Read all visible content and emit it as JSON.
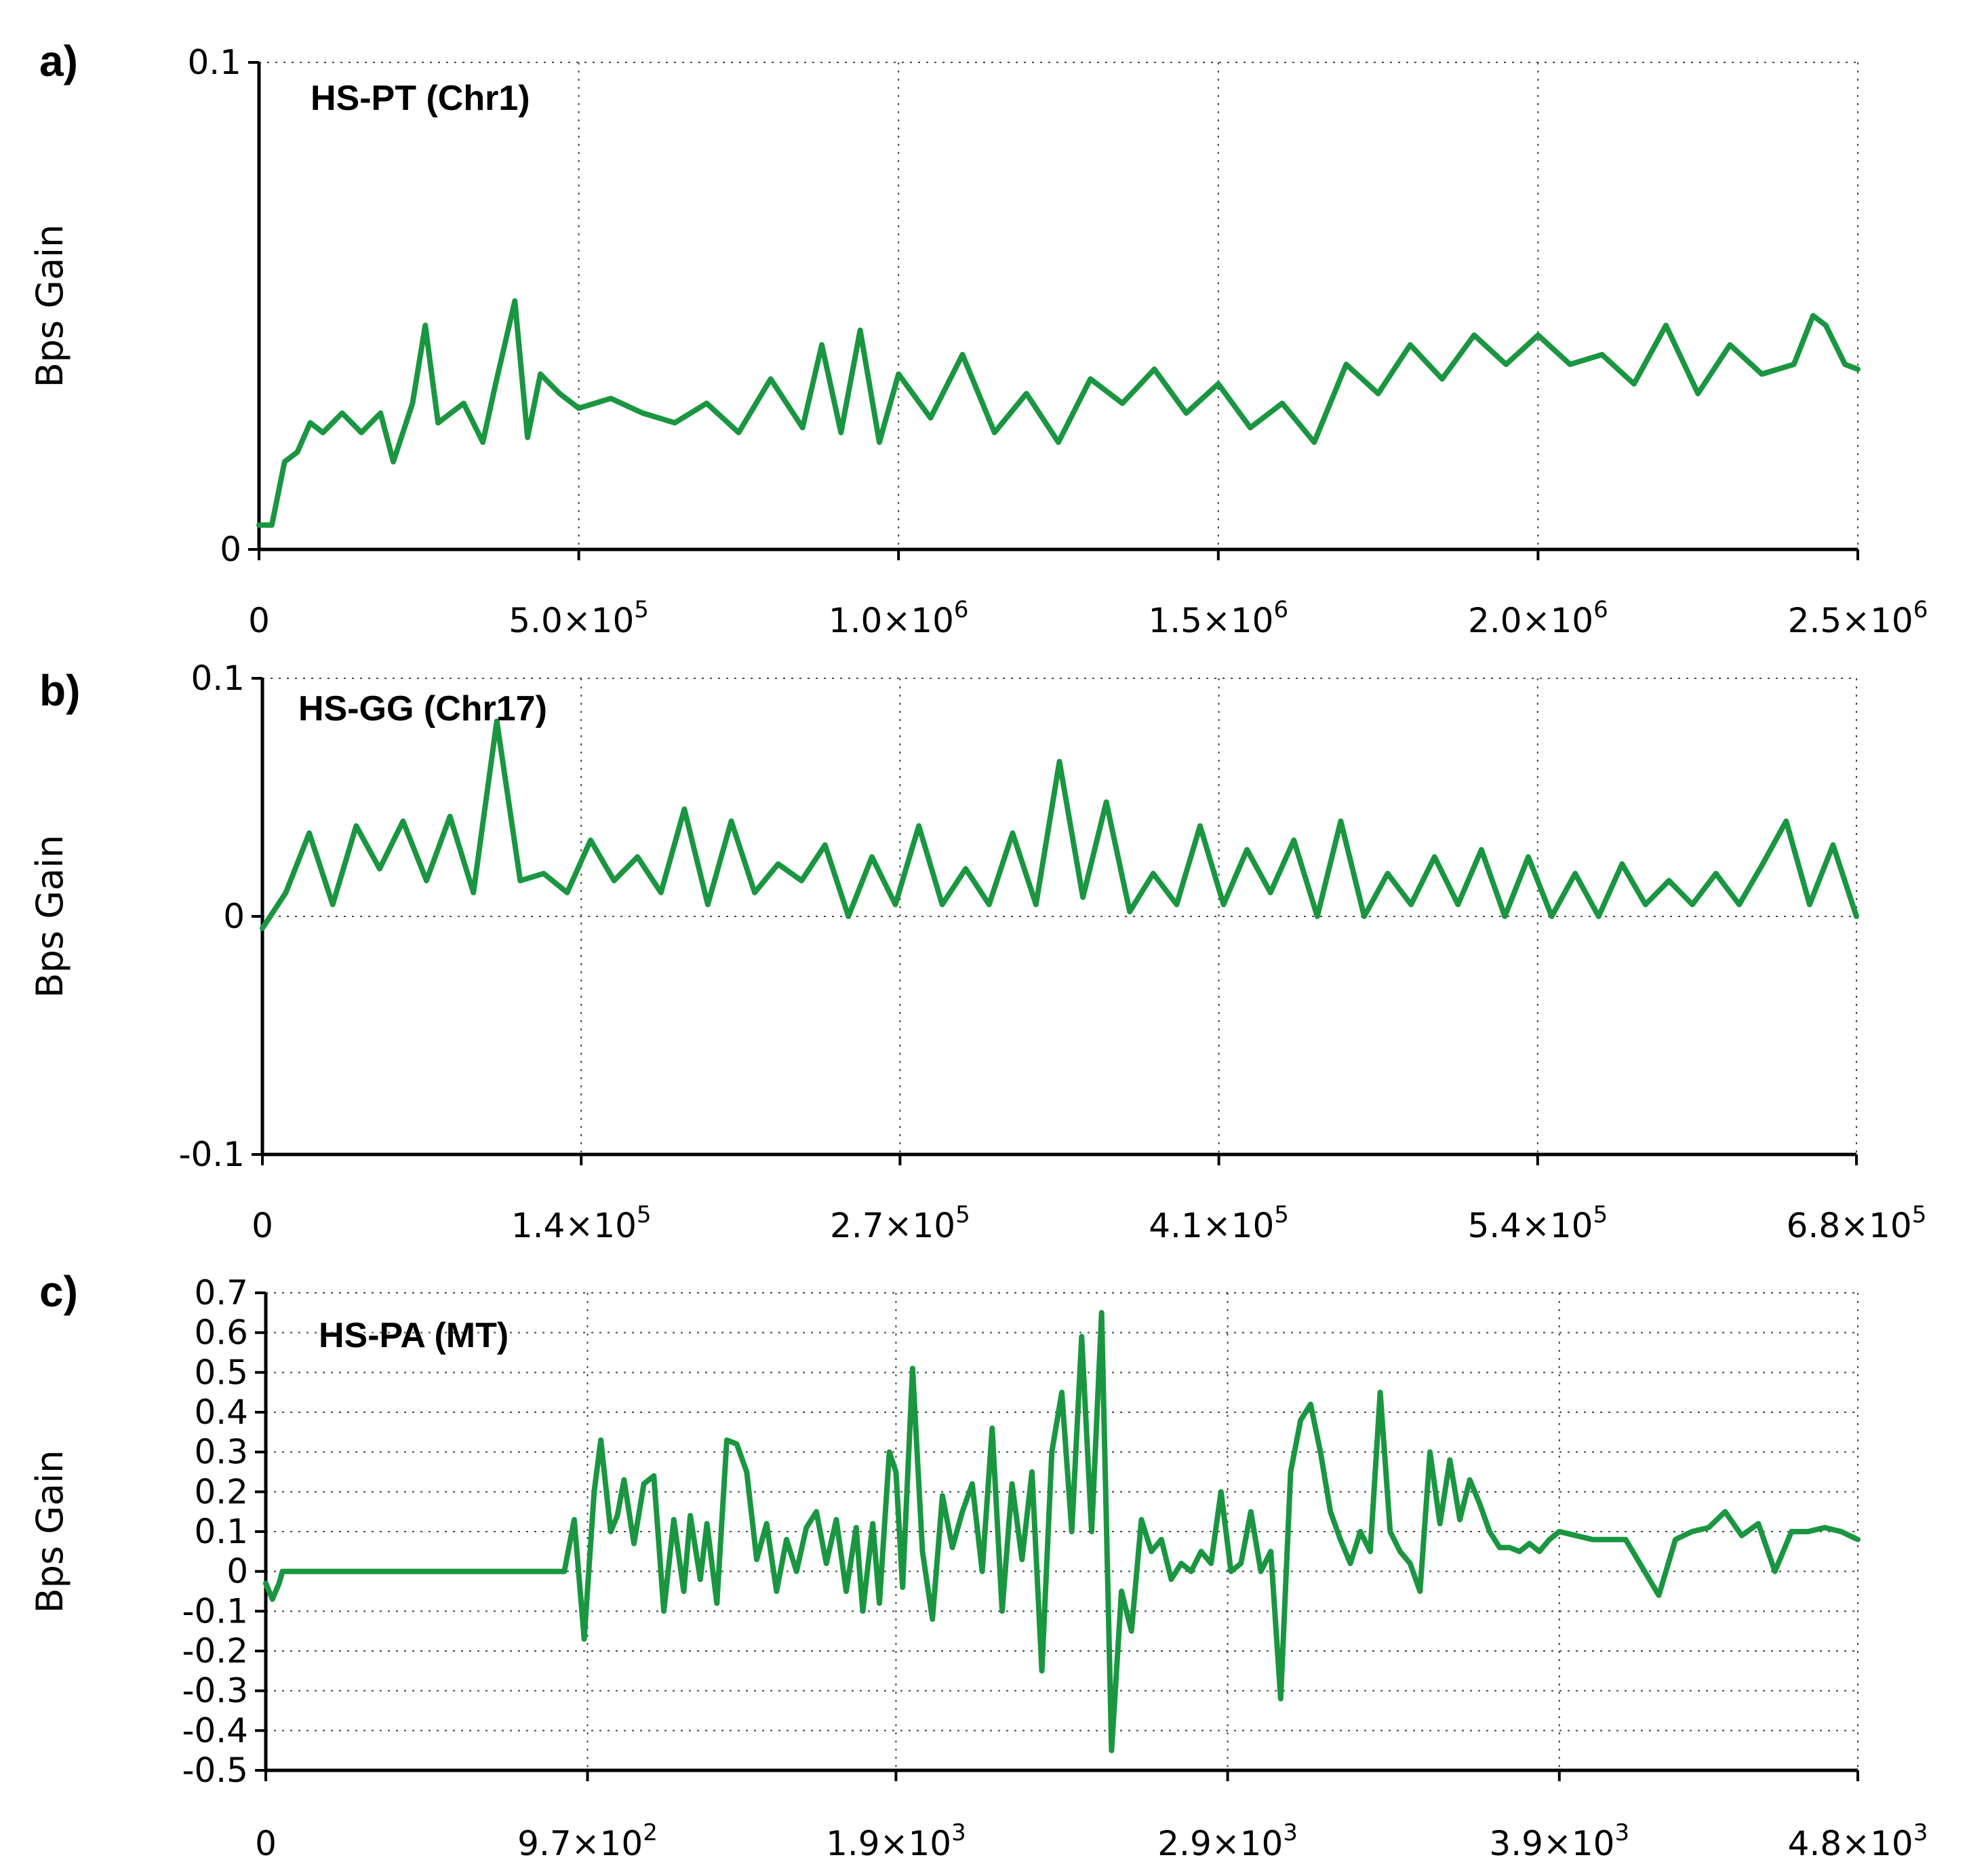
{
  "chart_data": [
    {
      "type": "line",
      "panel": "a)",
      "title": "HS-PT (Chr1)",
      "xlabel": "",
      "ylabel": "Bps Gain",
      "xlim": [
        0,
        2500000
      ],
      "ylim": [
        0,
        0.1
      ],
      "x_ticks": [
        {
          "value": 0,
          "label": "0"
        },
        {
          "value": 500000,
          "mant": "5.0×10",
          "exp": "5"
        },
        {
          "value": 1000000,
          "mant": "1.0×10",
          "exp": "6"
        },
        {
          "value": 1500000,
          "mant": "1.5×10",
          "exp": "6"
        },
        {
          "value": 2000000,
          "mant": "2.0×10",
          "exp": "6"
        },
        {
          "value": 2500000,
          "mant": "2.5×10",
          "exp": "6"
        }
      ],
      "y_ticks": [
        {
          "value": 0,
          "label": "0"
        },
        {
          "value": 0.1,
          "label": "0.1"
        }
      ],
      "grid": true,
      "series": [
        {
          "name": "HS-PT (Chr1)",
          "color": "#1a9641",
          "x": [
            0,
            20000,
            40000,
            60000,
            80000,
            100000,
            130000,
            160000,
            190000,
            210000,
            240000,
            260000,
            280000,
            320000,
            350000,
            370000,
            400000,
            420000,
            440000,
            470000,
            500000,
            550000,
            600000,
            650000,
            700000,
            750000,
            800000,
            850000,
            880000,
            910000,
            940000,
            970000,
            1000000,
            1050000,
            1100000,
            1150000,
            1200000,
            1250000,
            1300000,
            1350000,
            1400000,
            1450000,
            1500000,
            1550000,
            1600000,
            1650000,
            1700000,
            1750000,
            1800000,
            1850000,
            1900000,
            1950000,
            2000000,
            2050000,
            2100000,
            2150000,
            2200000,
            2250000,
            2300000,
            2350000,
            2400000,
            2430000,
            2450000,
            2480000,
            2500000
          ],
          "y": [
            0.005,
            0.005,
            0.018,
            0.02,
            0.026,
            0.024,
            0.028,
            0.024,
            0.028,
            0.018,
            0.03,
            0.046,
            0.026,
            0.03,
            0.022,
            0.034,
            0.051,
            0.023,
            0.036,
            0.032,
            0.029,
            0.031,
            0.028,
            0.026,
            0.03,
            0.024,
            0.035,
            0.025,
            0.042,
            0.024,
            0.045,
            0.022,
            0.036,
            0.027,
            0.04,
            0.024,
            0.032,
            0.022,
            0.035,
            0.03,
            0.037,
            0.028,
            0.034,
            0.025,
            0.03,
            0.022,
            0.038,
            0.032,
            0.042,
            0.035,
            0.044,
            0.038,
            0.044,
            0.038,
            0.04,
            0.034,
            0.046,
            0.032,
            0.042,
            0.036,
            0.038,
            0.048,
            0.046,
            0.038,
            0.037
          ]
        }
      ]
    },
    {
      "type": "line",
      "panel": "b)",
      "title": "HS-GG (Chr17)",
      "xlabel": "",
      "ylabel": "Bps Gain",
      "xlim": [
        0,
        680000
      ],
      "ylim": [
        -0.1,
        0.1
      ],
      "x_ticks": [
        {
          "value": 0,
          "label": "0"
        },
        {
          "value": 136000,
          "mant": "1.4×10",
          "exp": "5"
        },
        {
          "value": 272000,
          "mant": "2.7×10",
          "exp": "5"
        },
        {
          "value": 408000,
          "mant": "4.1×10",
          "exp": "5"
        },
        {
          "value": 544000,
          "mant": "5.4×10",
          "exp": "5"
        },
        {
          "value": 680000,
          "mant": "6.8×10",
          "exp": "5"
        }
      ],
      "y_ticks": [
        {
          "value": -0.1,
          "label": "-0.1"
        },
        {
          "value": 0,
          "label": "0"
        },
        {
          "value": 0.1,
          "label": "0.1"
        }
      ],
      "grid": true,
      "series": [
        {
          "name": "HS-GG (Chr17)",
          "color": "#1a9641",
          "x": [
            0,
            10000,
            20000,
            30000,
            40000,
            50000,
            60000,
            70000,
            80000,
            90000,
            100000,
            110000,
            120000,
            130000,
            140000,
            150000,
            160000,
            170000,
            180000,
            190000,
            200000,
            210000,
            220000,
            230000,
            240000,
            250000,
            260000,
            270000,
            280000,
            290000,
            300000,
            310000,
            320000,
            330000,
            340000,
            350000,
            360000,
            370000,
            380000,
            390000,
            400000,
            410000,
            420000,
            430000,
            440000,
            450000,
            460000,
            470000,
            480000,
            490000,
            500000,
            510000,
            520000,
            530000,
            540000,
            550000,
            560000,
            570000,
            580000,
            590000,
            600000,
            610000,
            620000,
            630000,
            640000,
            650000,
            660000,
            670000,
            680000
          ],
          "y": [
            -0.005,
            0.01,
            0.035,
            0.005,
            0.038,
            0.02,
            0.04,
            0.015,
            0.042,
            0.01,
            0.082,
            0.015,
            0.018,
            0.01,
            0.032,
            0.015,
            0.025,
            0.01,
            0.045,
            0.005,
            0.04,
            0.01,
            0.022,
            0.015,
            0.03,
            0.0,
            0.025,
            0.005,
            0.038,
            0.005,
            0.02,
            0.005,
            0.035,
            0.005,
            0.065,
            0.008,
            0.048,
            0.002,
            0.018,
            0.005,
            0.038,
            0.005,
            0.028,
            0.01,
            0.032,
            0.0,
            0.04,
            0.0,
            0.018,
            0.005,
            0.025,
            0.005,
            0.028,
            0.0,
            0.025,
            0.0,
            0.018,
            0.0,
            0.022,
            0.005,
            0.015,
            0.005,
            0.018,
            0.005,
            0.022,
            0.04,
            0.005,
            0.03,
            0.0
          ]
        }
      ]
    },
    {
      "type": "line",
      "panel": "c)",
      "title": "HS-PA (MT)",
      "xlabel": "",
      "ylabel": "Bps Gain",
      "xlim": [
        0,
        4800
      ],
      "ylim": [
        -0.5,
        0.7
      ],
      "x_ticks": [
        {
          "value": 0,
          "label": "0"
        },
        {
          "value": 970,
          "mant": "9.7×10",
          "exp": "2"
        },
        {
          "value": 1900,
          "mant": "1.9×10",
          "exp": "3"
        },
        {
          "value": 2900,
          "mant": "2.9×10",
          "exp": "3"
        },
        {
          "value": 3900,
          "mant": "3.9×10",
          "exp": "3"
        },
        {
          "value": 4800,
          "mant": "4.8×10",
          "exp": "3"
        }
      ],
      "y_ticks": [
        {
          "value": -0.5,
          "label": "-0.5"
        },
        {
          "value": -0.4,
          "label": "-0.4"
        },
        {
          "value": -0.3,
          "label": "-0.3"
        },
        {
          "value": -0.2,
          "label": "-0.2"
        },
        {
          "value": -0.1,
          "label": "-0.1"
        },
        {
          "value": 0,
          "label": "0"
        },
        {
          "value": 0.1,
          "label": "0.1"
        },
        {
          "value": 0.2,
          "label": "0.2"
        },
        {
          "value": 0.3,
          "label": "0.3"
        },
        {
          "value": 0.4,
          "label": "0.4"
        },
        {
          "value": 0.5,
          "label": "0.5"
        },
        {
          "value": 0.6,
          "label": "0.6"
        },
        {
          "value": 0.7,
          "label": "0.7"
        }
      ],
      "grid": true,
      "series": [
        {
          "name": "HS-PA (MT)",
          "color": "#1a9641",
          "x": [
            0,
            20,
            40,
            50,
            870,
            880,
            900,
            930,
            960,
            990,
            1010,
            1040,
            1060,
            1080,
            1110,
            1140,
            1170,
            1200,
            1230,
            1260,
            1280,
            1310,
            1330,
            1360,
            1390,
            1420,
            1450,
            1480,
            1510,
            1540,
            1570,
            1600,
            1630,
            1660,
            1690,
            1720,
            1750,
            1780,
            1800,
            1830,
            1850,
            1880,
            1900,
            1920,
            1950,
            1980,
            2010,
            2040,
            2070,
            2100,
            2130,
            2160,
            2190,
            2220,
            2250,
            2280,
            2310,
            2340,
            2370,
            2400,
            2430,
            2460,
            2490,
            2520,
            2550,
            2580,
            2610,
            2640,
            2670,
            2700,
            2730,
            2760,
            2790,
            2820,
            2850,
            2880,
            2910,
            2940,
            2970,
            3000,
            3030,
            3060,
            3090,
            3120,
            3150,
            3180,
            3210,
            3240,
            3270,
            3300,
            3330,
            3360,
            3390,
            3420,
            3450,
            3480,
            3510,
            3540,
            3570,
            3600,
            3630,
            3660,
            3690,
            3720,
            3750,
            3780,
            3810,
            3840,
            3870,
            3900,
            4000,
            4100,
            4200,
            4250,
            4300,
            4350,
            4400,
            4450,
            4500,
            4550,
            4600,
            4650,
            4700,
            4750,
            4800
          ],
          "y": [
            -0.03,
            -0.07,
            -0.03,
            0.0,
            0.0,
            0.0,
            0.0,
            0.13,
            -0.17,
            0.2,
            0.33,
            0.1,
            0.14,
            0.23,
            0.07,
            0.22,
            0.24,
            -0.1,
            0.13,
            -0.05,
            0.14,
            -0.02,
            0.12,
            -0.08,
            0.33,
            0.32,
            0.25,
            0.03,
            0.12,
            -0.05,
            0.08,
            0.0,
            0.11,
            0.15,
            0.02,
            0.13,
            -0.05,
            0.11,
            -0.1,
            0.12,
            -0.08,
            0.3,
            0.25,
            -0.04,
            0.51,
            0.05,
            -0.12,
            0.19,
            0.06,
            0.15,
            0.22,
            0.0,
            0.36,
            -0.1,
            0.22,
            0.03,
            0.25,
            -0.25,
            0.3,
            0.45,
            0.1,
            0.59,
            0.1,
            0.65,
            -0.45,
            -0.05,
            -0.15,
            0.13,
            0.05,
            0.08,
            -0.02,
            0.02,
            0.0,
            0.05,
            0.02,
            0.2,
            0.0,
            0.02,
            0.15,
            0.0,
            0.05,
            -0.32,
            0.25,
            0.38,
            0.42,
            0.3,
            0.15,
            0.08,
            0.02,
            0.1,
            0.05,
            0.45,
            0.1,
            0.05,
            0.02,
            -0.05,
            0.3,
            0.12,
            0.28,
            0.13,
            0.23,
            0.17,
            0.1,
            0.06,
            0.06,
            0.05,
            0.07,
            0.05,
            0.08,
            0.1,
            0.08,
            0.08,
            -0.06,
            0.08,
            0.1,
            0.11,
            0.15,
            0.09,
            0.12,
            0.0,
            0.1,
            0.1,
            0.11,
            0.1,
            0.08
          ]
        }
      ]
    }
  ]
}
